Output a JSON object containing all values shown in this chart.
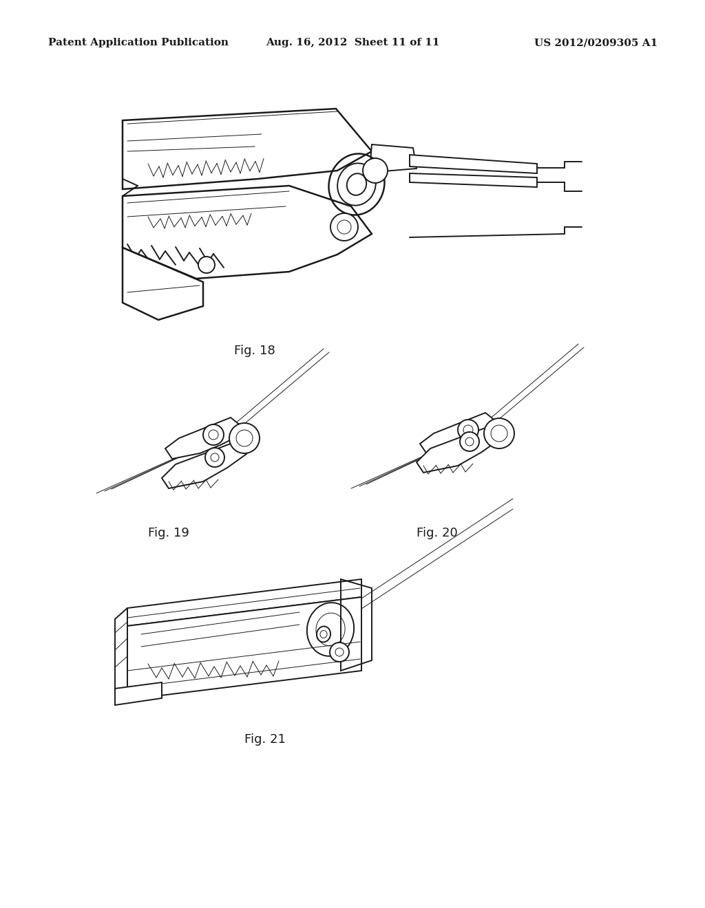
{
  "background_color": "#ffffff",
  "header_left": "Patent Application Publication",
  "header_center": "Aug. 16, 2012  Sheet 11 of 11",
  "header_right": "US 2012/0209305 A1",
  "header_fontsize": 11,
  "fig18_label": "Fig. 18",
  "fig19_label": "Fig. 19",
  "fig20_label": "Fig. 20",
  "fig21_label": "Fig. 21",
  "label_fontsize": 13,
  "line_color": "#1a1a1a",
  "lw_main": 1.4,
  "lw_thin": 0.7,
  "lw_thick": 1.8,
  "page_width": 10.24,
  "page_height": 13.2,
  "dpi": 100
}
